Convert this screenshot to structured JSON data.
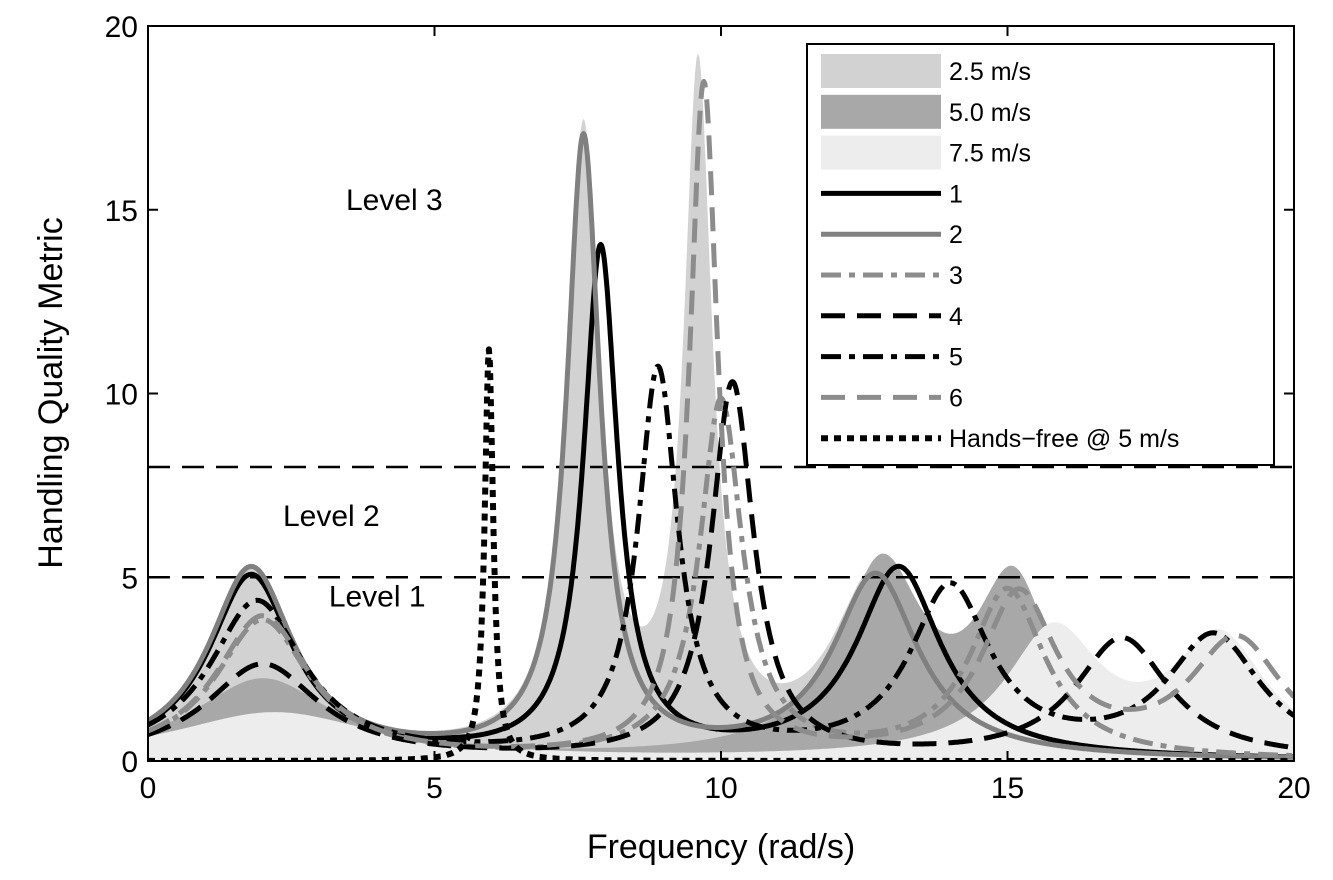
{
  "chart_data": {
    "type": "line",
    "title": "",
    "xlabel": "Frequency (rad/s)",
    "ylabel": "Handling Quality Metric",
    "xlim": [
      0,
      20
    ],
    "ylim": [
      0,
      20
    ],
    "xticks": [
      "0",
      "5",
      "10",
      "15",
      "20"
    ],
    "yticks": [
      "0",
      "5",
      "10",
      "15",
      "20"
    ],
    "grid": false,
    "legend_position": "top-right",
    "thresholds": [
      5,
      8
    ],
    "level_labels": [
      {
        "text": "Level 3",
        "x": 4.3,
        "y": 15
      },
      {
        "text": "Level 2",
        "x": 3.2,
        "y": 6.4
      },
      {
        "text": "Level 1",
        "x": 4.0,
        "y": 4.2
      }
    ],
    "bands": [
      {
        "name": "2.5 m/s",
        "color": "#d2d2d2",
        "peaks": [
          [
            1.8,
            5.2,
            0.9
          ],
          [
            7.6,
            16.8,
            0.35
          ],
          [
            9.6,
            18.3,
            0.3
          ],
          [
            12.7,
            5.0,
            0.9
          ]
        ]
      },
      {
        "name": "5.0 m/s",
        "color": "#a8a8a8",
        "peaks": [
          [
            2.0,
            2.2,
            1.5
          ],
          [
            12.8,
            5.1,
            0.9
          ],
          [
            15.1,
            4.6,
            0.8
          ]
        ]
      },
      {
        "name": "7.5 m/s",
        "color": "#ededed",
        "peaks": [
          [
            2.2,
            1.3,
            2.2
          ],
          [
            15.8,
            3.4,
            1.0
          ],
          [
            18.7,
            3.2,
            1.0
          ]
        ]
      }
    ],
    "series": [
      {
        "name": "1",
        "style": "solid",
        "color": "#000000",
        "width": 5,
        "peaks": [
          [
            1.8,
            5.0,
            0.9
          ],
          [
            7.9,
            13.8,
            0.36
          ],
          [
            13.1,
            5.2,
            0.9
          ]
        ]
      },
      {
        "name": "2",
        "style": "solid",
        "color": "#808080",
        "width": 5,
        "peaks": [
          [
            1.8,
            5.2,
            0.9
          ],
          [
            7.6,
            16.8,
            0.35
          ],
          [
            12.7,
            5.0,
            0.9
          ]
        ]
      },
      {
        "name": "3",
        "style": "dashdot",
        "color": "#8c8c8c",
        "width": 5,
        "peaks": [
          [
            2.0,
            3.8,
            1.0
          ],
          [
            10.0,
            9.7,
            0.45
          ],
          [
            15.0,
            4.6,
            0.8
          ]
        ]
      },
      {
        "name": "4",
        "style": "dash",
        "color": "#000000",
        "width": 5,
        "peaks": [
          [
            2.0,
            2.6,
            1.2
          ],
          [
            10.2,
            10.2,
            0.45
          ],
          [
            17.0,
            3.3,
            1.0
          ]
        ]
      },
      {
        "name": "5",
        "style": "dashdot",
        "color": "#000000",
        "width": 5,
        "peaks": [
          [
            1.9,
            4.3,
            1.0
          ],
          [
            8.9,
            10.5,
            0.42
          ],
          [
            14.0,
            4.6,
            0.85
          ],
          [
            18.6,
            3.3,
            1.0
          ]
        ]
      },
      {
        "name": "6",
        "style": "dash",
        "color": "#8c8c8c",
        "width": 5,
        "peaks": [
          [
            2.0,
            3.9,
            1.0
          ],
          [
            9.7,
            18.3,
            0.3
          ],
          [
            15.2,
            4.4,
            0.8
          ],
          [
            19.0,
            3.2,
            1.0
          ]
        ]
      },
      {
        "name": "Hands−free @ 5 m/s",
        "style": "dot",
        "color": "#000000",
        "width": 6,
        "peaks": [
          [
            5.95,
            11.2,
            0.09
          ]
        ]
      }
    ]
  }
}
